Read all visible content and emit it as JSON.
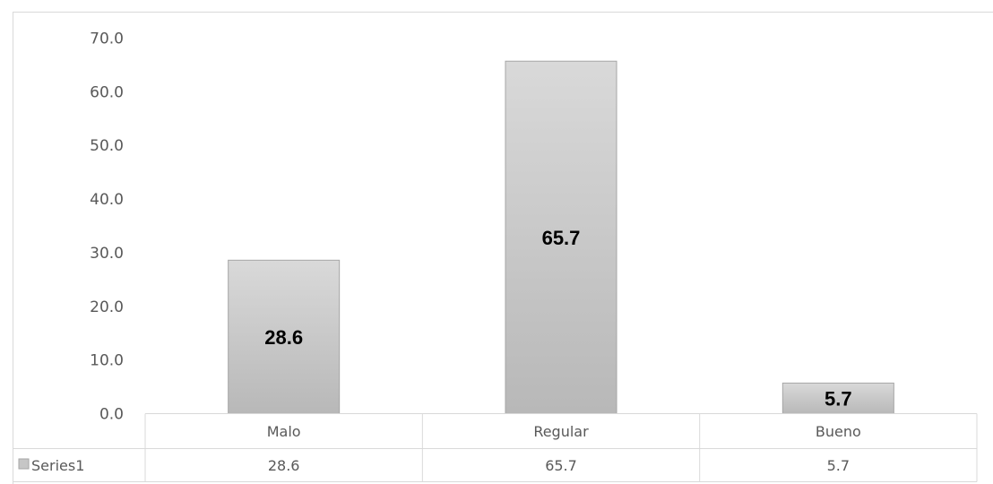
{
  "chart_data": {
    "type": "bar",
    "categories": [
      "Malo",
      "Regular",
      "Bueno"
    ],
    "series": [
      {
        "name": "Series1",
        "values": [
          28.6,
          65.7,
          5.7
        ]
      }
    ],
    "data_labels": [
      "28.6",
      "65.7",
      "5.7"
    ],
    "table_values": [
      "28.6",
      "65.7",
      "5.7"
    ],
    "y_ticks": [
      "0.0",
      "10.0",
      "20.0",
      "30.0",
      "40.0",
      "50.0",
      "60.0",
      "70.0"
    ],
    "ylim": [
      0,
      70
    ],
    "grid": false,
    "legend": "data-table",
    "bar_color": "#c6c6c6",
    "bar_stroke": "#a6a6a6",
    "axis_color": "#d9d9d9",
    "text_color": "#595959"
  }
}
